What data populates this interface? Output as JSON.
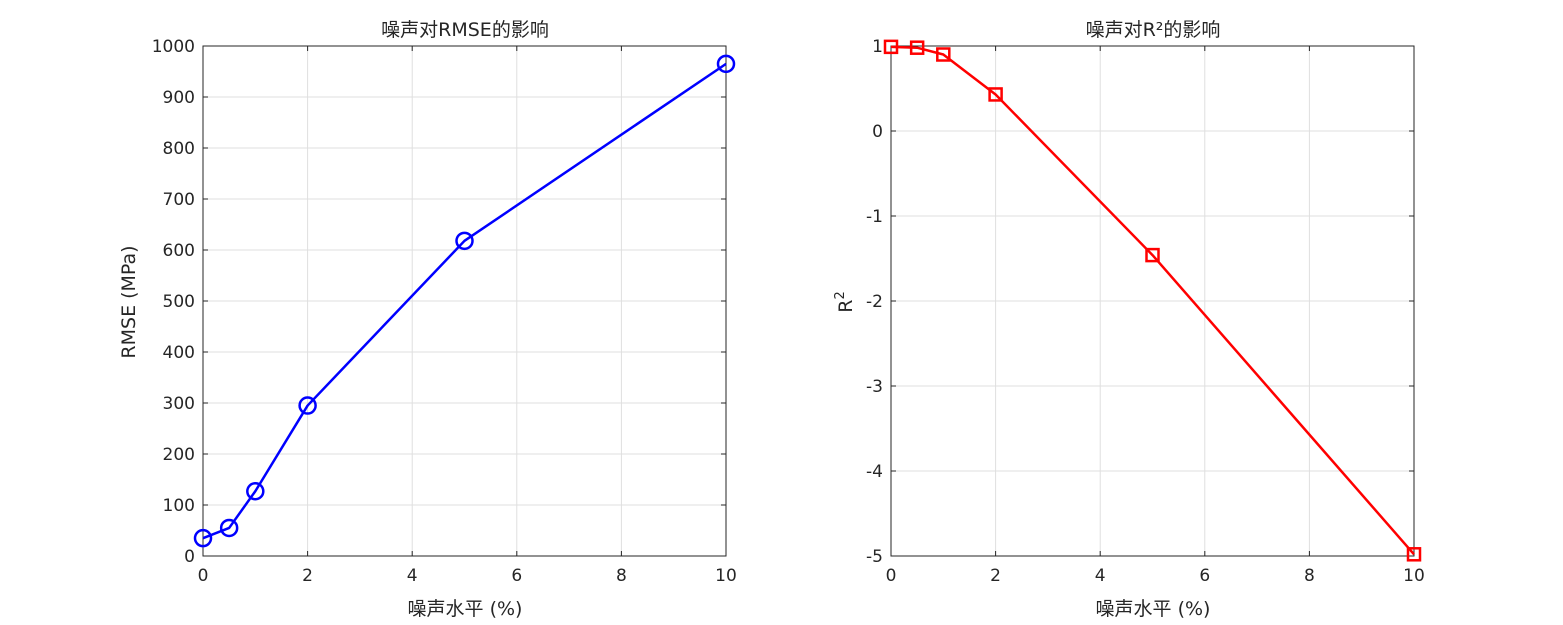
{
  "chart_data": [
    {
      "type": "line",
      "title": "噪声对RMSE的影响",
      "xlabel": "噪声水平 (%)",
      "ylabel": "RMSE (MPa)",
      "xlim": [
        0,
        10
      ],
      "ylim": [
        0,
        1000
      ],
      "xticks": [
        0,
        2,
        4,
        6,
        8,
        10
      ],
      "yticks": [
        0,
        100,
        200,
        300,
        400,
        500,
        600,
        700,
        800,
        900,
        1000
      ],
      "grid": true,
      "marker": "circle",
      "color": "#0000ff",
      "series": [
        {
          "x": [
            0,
            0.5,
            1,
            2,
            5,
            10
          ],
          "values": [
            35,
            55,
            127,
            295,
            618,
            965
          ]
        }
      ]
    },
    {
      "type": "line",
      "title": "噪声对R²的影响",
      "xlabel": "噪声水平 (%)",
      "ylabel": "R",
      "ylabel_sup": "2",
      "xlim": [
        0,
        10
      ],
      "ylim": [
        -5,
        1
      ],
      "xticks": [
        0,
        2,
        4,
        6,
        8,
        10
      ],
      "yticks": [
        -5,
        -4,
        -3,
        -2,
        -1,
        0,
        1
      ],
      "grid": true,
      "marker": "square",
      "color": "#ff0000",
      "series": [
        {
          "x": [
            0,
            0.5,
            1,
            2,
            5,
            10
          ],
          "values": [
            0.99,
            0.98,
            0.9,
            0.43,
            -1.46,
            -4.98
          ]
        }
      ]
    }
  ]
}
